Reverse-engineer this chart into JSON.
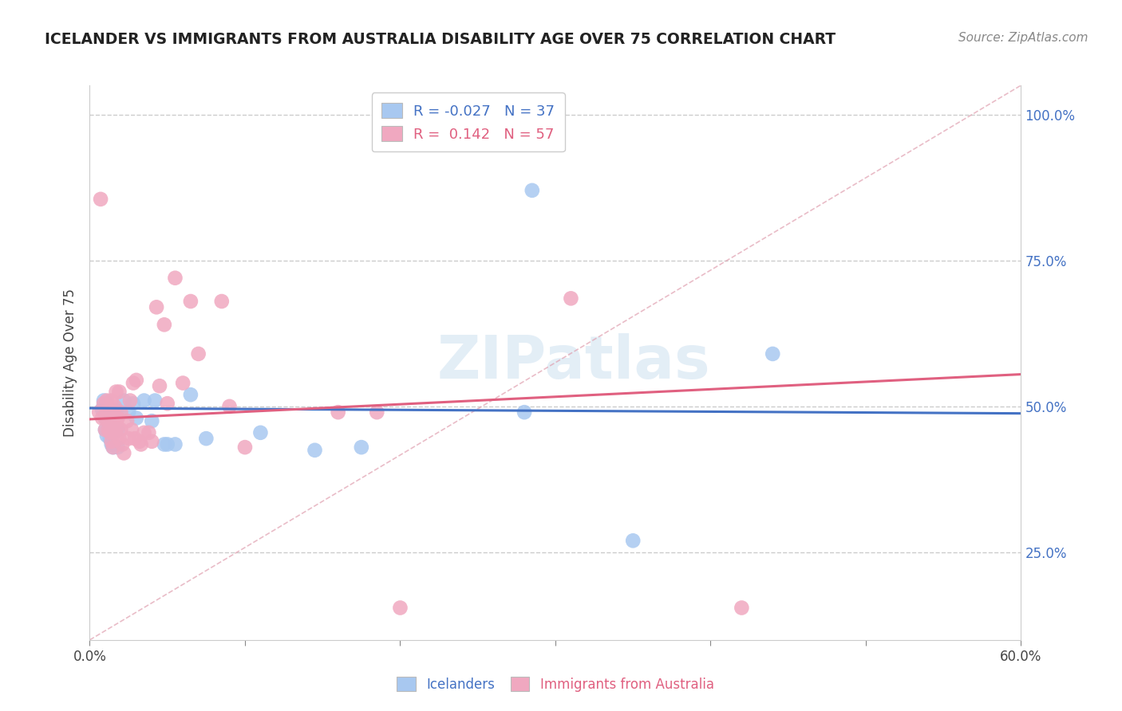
{
  "title": "ICELANDER VS IMMIGRANTS FROM AUSTRALIA DISABILITY AGE OVER 75 CORRELATION CHART",
  "source": "Source: ZipAtlas.com",
  "ylabel": "Disability Age Over 75",
  "xlim": [
    0.0,
    0.6
  ],
  "ylim": [
    0.1,
    1.05
  ],
  "xticks": [
    0.0,
    0.1,
    0.2,
    0.3,
    0.4,
    0.5,
    0.6
  ],
  "xticklabels": [
    "0.0%",
    "",
    "",
    "",
    "",
    "",
    "60.0%"
  ],
  "ytick_positions": [
    0.25,
    0.5,
    0.75,
    1.0
  ],
  "ytick_labels": [
    "25.0%",
    "50.0%",
    "75.0%",
    "100.0%"
  ],
  "icelander_R": "-0.027",
  "icelander_N": "37",
  "australia_R": "0.142",
  "australia_N": "57",
  "icelander_color": "#a8c8f0",
  "australia_color": "#f0a8c0",
  "icelander_line_color": "#4472c4",
  "australia_line_color": "#e06080",
  "diagonal_line_color": "#d0a0a8",
  "watermark": "ZIPatlas",
  "icelander_x": [
    0.008,
    0.009,
    0.01,
    0.01,
    0.011,
    0.011,
    0.012,
    0.012,
    0.013,
    0.013,
    0.014,
    0.014,
    0.015,
    0.015,
    0.016,
    0.017,
    0.018,
    0.018,
    0.022,
    0.025,
    0.028,
    0.03,
    0.035,
    0.04,
    0.042,
    0.048,
    0.05,
    0.055,
    0.065,
    0.075,
    0.11,
    0.145,
    0.175,
    0.28,
    0.35,
    0.44,
    0.285
  ],
  "icelander_y": [
    0.495,
    0.51,
    0.46,
    0.48,
    0.45,
    0.505,
    0.46,
    0.48,
    0.445,
    0.47,
    0.435,
    0.495,
    0.49,
    0.43,
    0.46,
    0.495,
    0.43,
    0.46,
    0.51,
    0.49,
    0.505,
    0.48,
    0.51,
    0.475,
    0.51,
    0.435,
    0.435,
    0.435,
    0.52,
    0.445,
    0.455,
    0.425,
    0.43,
    0.49,
    0.27,
    0.59,
    0.87
  ],
  "australia_x": [
    0.006,
    0.007,
    0.008,
    0.009,
    0.01,
    0.01,
    0.011,
    0.011,
    0.012,
    0.012,
    0.013,
    0.013,
    0.014,
    0.014,
    0.014,
    0.015,
    0.015,
    0.016,
    0.016,
    0.017,
    0.017,
    0.018,
    0.018,
    0.019,
    0.019,
    0.02,
    0.02,
    0.021,
    0.022,
    0.024,
    0.025,
    0.026,
    0.027,
    0.028,
    0.029,
    0.03,
    0.032,
    0.033,
    0.035,
    0.038,
    0.04,
    0.043,
    0.045,
    0.048,
    0.05,
    0.055,
    0.06,
    0.065,
    0.07,
    0.085,
    0.09,
    0.1,
    0.16,
    0.185,
    0.2,
    0.31,
    0.42
  ],
  "australia_y": [
    0.49,
    0.855,
    0.48,
    0.505,
    0.46,
    0.48,
    0.49,
    0.51,
    0.46,
    0.48,
    0.48,
    0.455,
    0.44,
    0.51,
    0.46,
    0.49,
    0.43,
    0.455,
    0.5,
    0.475,
    0.525,
    0.465,
    0.48,
    0.445,
    0.525,
    0.46,
    0.49,
    0.435,
    0.42,
    0.475,
    0.445,
    0.51,
    0.46,
    0.54,
    0.445,
    0.545,
    0.44,
    0.435,
    0.455,
    0.455,
    0.44,
    0.67,
    0.535,
    0.64,
    0.505,
    0.72,
    0.54,
    0.68,
    0.59,
    0.68,
    0.5,
    0.43,
    0.49,
    0.49,
    0.155,
    0.685,
    0.155
  ]
}
